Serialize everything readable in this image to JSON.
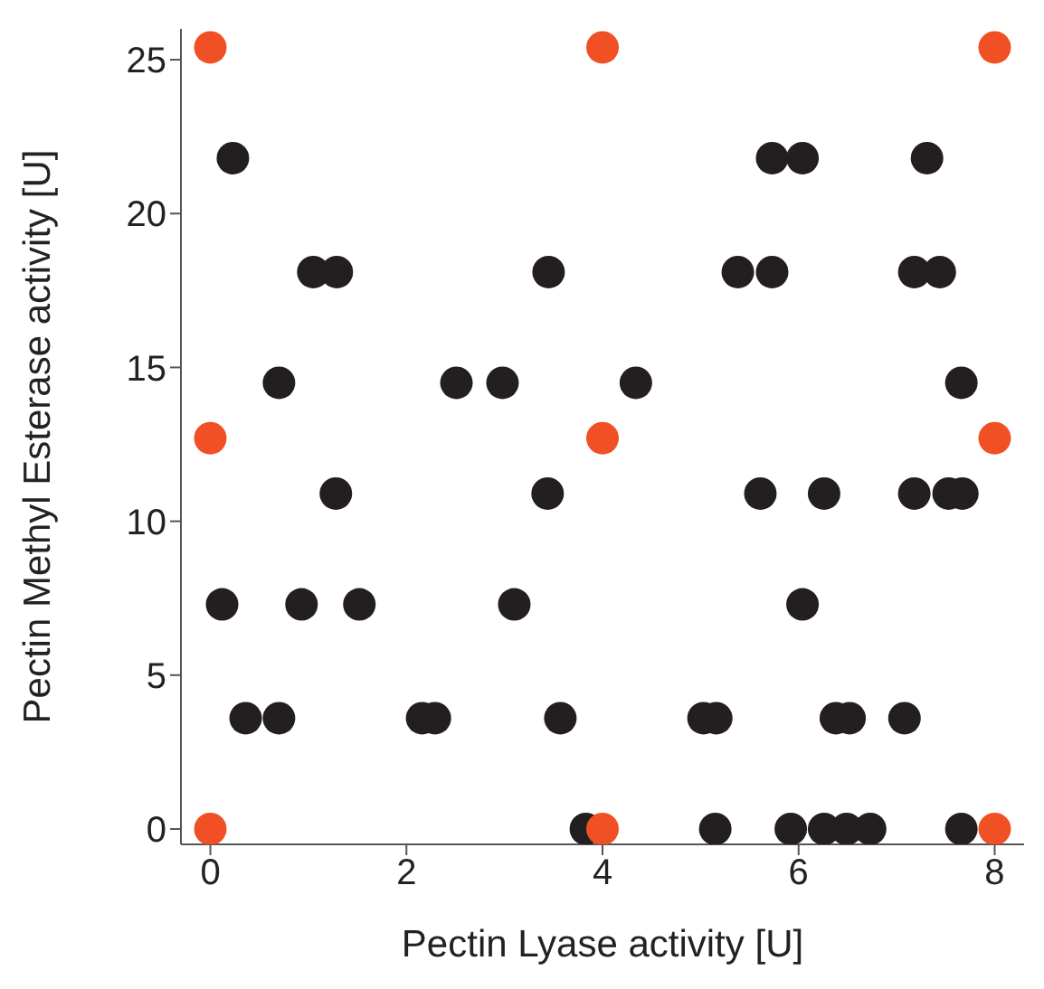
{
  "chart_data": {
    "type": "scatter",
    "xlabel": "Pectin Lyase activity [U]",
    "ylabel": "Pectin Methyl Esterase activity [U]",
    "xlim": [
      -0.3,
      8.3
    ],
    "ylim": [
      -0.5,
      26
    ],
    "xticks": [
      0,
      2,
      4,
      6,
      8
    ],
    "yticks": [
      0,
      5,
      10,
      15,
      20,
      25
    ],
    "grid": false,
    "legend": false,
    "marker": "circle",
    "series": [
      {
        "color": "#231f20",
        "x": [
          0.23,
          5.73,
          6.04,
          7.31,
          1.05,
          1.29,
          3.45,
          5.38,
          5.73,
          7.18,
          7.44,
          0.7,
          2.51,
          2.98,
          4.34,
          7.66,
          1.28,
          3.44,
          5.61,
          6.26,
          7.18,
          7.53,
          7.67,
          0.12,
          0.93,
          1.52,
          3.1,
          6.04,
          0.36,
          0.7,
          2.16,
          2.29,
          3.57,
          5.03,
          5.16,
          6.38,
          6.52,
          7.08,
          3.83,
          5.15,
          5.92,
          6.26,
          6.49,
          6.73,
          7.66
        ],
        "values": [
          21.8,
          21.8,
          21.8,
          21.8,
          18.1,
          18.1,
          18.1,
          18.1,
          18.1,
          18.1,
          18.1,
          14.5,
          14.5,
          14.5,
          14.5,
          14.5,
          10.9,
          10.9,
          10.9,
          10.9,
          10.9,
          10.9,
          10.9,
          7.3,
          7.3,
          7.3,
          7.3,
          7.3,
          3.6,
          3.6,
          3.6,
          3.6,
          3.6,
          3.6,
          3.6,
          3.6,
          3.6,
          3.6,
          0,
          0,
          0,
          0,
          0,
          0,
          0
        ]
      },
      {
        "color": "#f05023",
        "x": [
          0,
          0,
          0,
          4,
          4,
          4,
          8,
          8,
          8
        ],
        "values": [
          0,
          12.7,
          25.4,
          0,
          12.7,
          25.4,
          0,
          12.7,
          25.4
        ]
      }
    ]
  }
}
